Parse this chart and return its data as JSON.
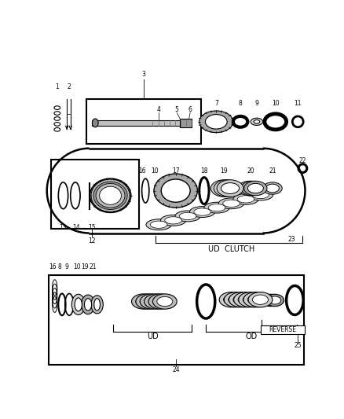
{
  "bg_color": "#ffffff",
  "line_color": "#000000",
  "labels": {
    "ud_clutch": "UD  CLUTCH",
    "ud": "UD",
    "od": "OD",
    "reverse": "REVERSE"
  },
  "figsize": [
    4.38,
    5.33
  ],
  "dpi": 100
}
